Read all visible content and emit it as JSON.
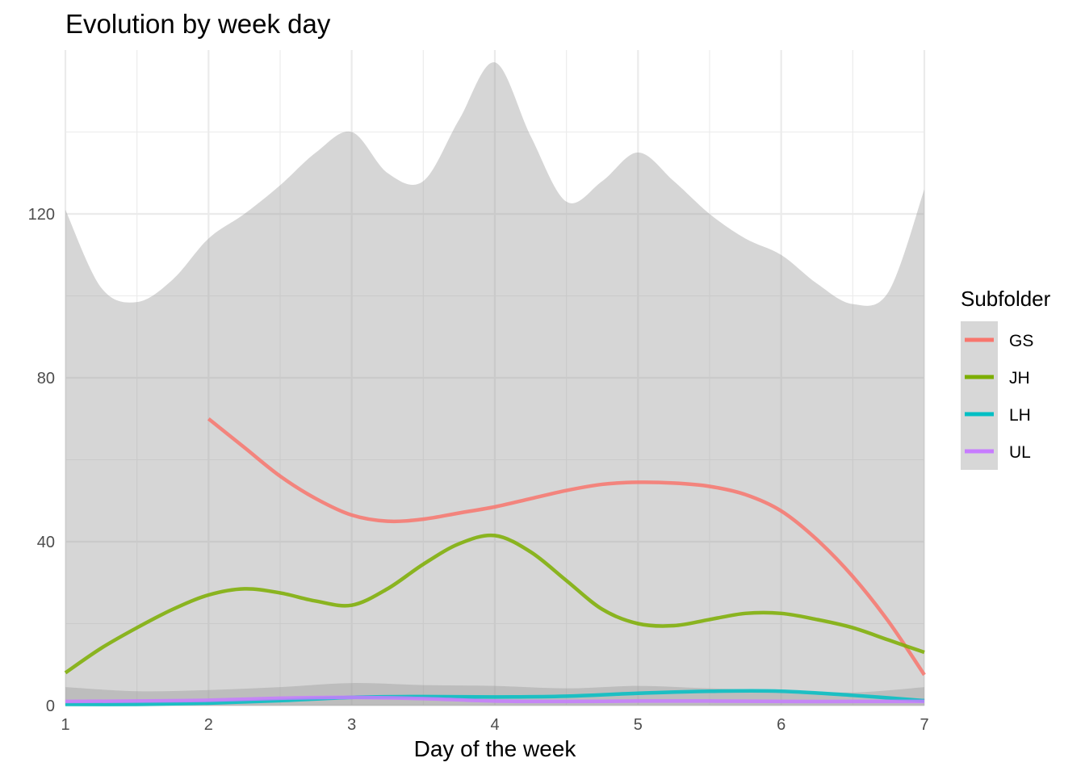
{
  "chart_data": {
    "type": "line",
    "title": "Evolution by week day",
    "xlabel": "Day of the week",
    "ylabel": "",
    "xlim": [
      1,
      7
    ],
    "ylim": [
      0,
      160
    ],
    "x_ticks": [
      1,
      2,
      3,
      4,
      5,
      6,
      7
    ],
    "y_ticks": [
      0,
      40,
      80,
      120
    ],
    "grid": true,
    "legend_position": "right",
    "legend_title": "Subfolder",
    "confidence_bands": [
      {
        "name": "upper",
        "x": [
          1,
          1.25,
          1.5,
          1.75,
          2,
          2.25,
          2.5,
          2.75,
          3,
          3.25,
          3.5,
          3.75,
          4,
          4.25,
          4.5,
          4.75,
          5,
          5.25,
          5.5,
          5.75,
          6,
          6.25,
          6.5,
          6.75,
          7
        ],
        "upper": [
          121,
          102,
          98.5,
          104,
          114,
          120,
          127,
          135,
          140,
          130,
          128,
          143,
          157,
          139,
          123,
          128,
          135,
          128,
          120,
          114,
          110,
          103,
          98,
          101,
          126
        ],
        "lower": [
          0,
          0,
          0,
          0,
          0,
          0,
          0,
          0,
          0,
          0,
          0,
          0,
          0,
          0,
          0,
          0,
          0,
          0,
          0,
          0,
          0,
          0,
          0,
          0,
          0
        ]
      },
      {
        "name": "lower-band",
        "x": [
          1,
          1.5,
          2,
          2.5,
          3,
          3.5,
          4,
          4.5,
          5,
          5.5,
          6,
          6.5,
          7
        ],
        "upper": [
          4.5,
          3.5,
          3.8,
          4.5,
          5.5,
          5,
          4.8,
          4.2,
          4.8,
          4.2,
          3.8,
          3.2,
          4.5
        ],
        "lower": [
          0,
          0,
          0,
          0,
          0,
          0,
          0,
          0,
          0,
          0,
          0,
          0,
          0
        ]
      }
    ],
    "series": [
      {
        "name": "GS",
        "color": "#F8766D",
        "x": [
          2,
          2.25,
          2.5,
          2.75,
          3,
          3.25,
          3.5,
          3.75,
          4,
          4.25,
          4.5,
          4.75,
          5,
          5.25,
          5.5,
          5.75,
          6,
          6.25,
          6.5,
          6.75,
          7
        ],
        "values": [
          70,
          63,
          56,
          50.5,
          46.5,
          45,
          45.5,
          47,
          48.5,
          50.5,
          52.5,
          54,
          54.5,
          54.3,
          53.5,
          51.5,
          47.5,
          40.5,
          31.5,
          20.5,
          7.5
        ]
      },
      {
        "name": "JH",
        "color": "#7CAE00",
        "x": [
          1,
          1.25,
          1.5,
          1.75,
          2,
          2.25,
          2.5,
          2.75,
          3,
          3.25,
          3.5,
          3.75,
          4,
          4.25,
          4.5,
          4.75,
          5,
          5.25,
          5.5,
          5.75,
          6,
          6.25,
          6.5,
          6.75,
          7
        ],
        "values": [
          8,
          14,
          19,
          23.5,
          27,
          28.5,
          27.5,
          25.5,
          24.5,
          28.5,
          34.5,
          39.5,
          41.5,
          37.5,
          30.5,
          23.5,
          20,
          19.5,
          21,
          22.5,
          22.5,
          21,
          19,
          16,
          13
        ]
      },
      {
        "name": "LH",
        "color": "#00BFC4",
        "x": [
          1,
          1.5,
          2,
          2.5,
          3,
          3.5,
          4,
          4.5,
          5,
          5.5,
          6,
          6.5,
          7
        ],
        "values": [
          0.3,
          0.3,
          0.6,
          1.2,
          2,
          2.2,
          2.1,
          2.3,
          3,
          3.5,
          3.5,
          2.5,
          1.2
        ]
      },
      {
        "name": "UL",
        "color": "#C77CFF",
        "x": [
          1,
          1.5,
          2,
          2.5,
          3,
          3.5,
          4,
          4.5,
          5,
          5.5,
          6,
          6.5,
          7
        ],
        "values": [
          1,
          1.1,
          1.3,
          1.8,
          2,
          1.7,
          1.1,
          1,
          1.1,
          1.1,
          1,
          1,
          1
        ]
      }
    ]
  }
}
